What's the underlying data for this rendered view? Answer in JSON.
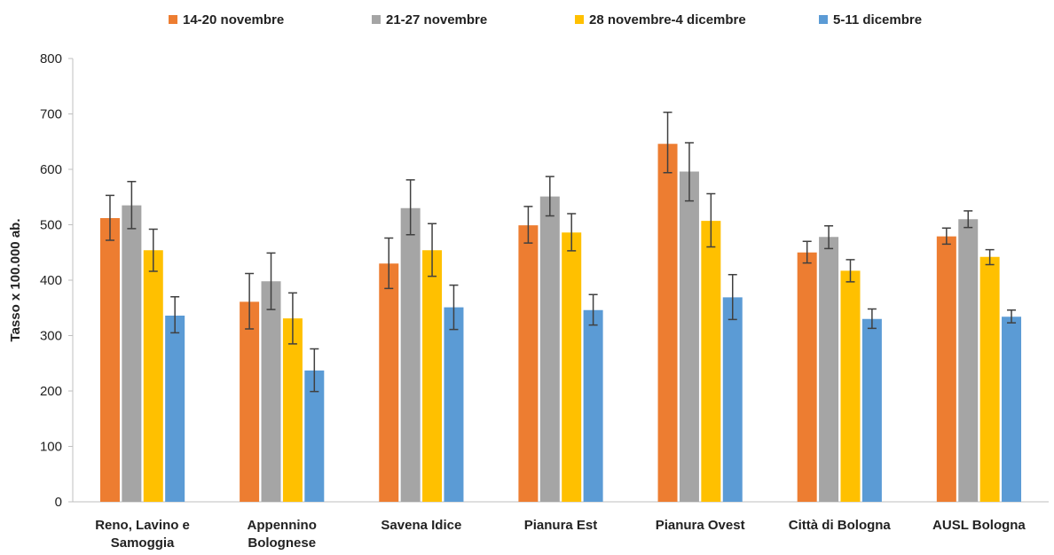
{
  "chart_data": {
    "type": "bar",
    "title": "",
    "xlabel": "",
    "ylabel": "Tasso x 100.000 ab.",
    "ylim": [
      0,
      800
    ],
    "yticks": [
      0,
      100,
      200,
      300,
      400,
      500,
      600,
      700,
      800
    ],
    "grid": false,
    "legend_position": "top",
    "error_bars": true,
    "categories": [
      [
        "Reno, Lavino e",
        "Samoggia"
      ],
      [
        "Appennino",
        "Bolognese"
      ],
      [
        "Savena Idice"
      ],
      [
        "Pianura Est"
      ],
      [
        "Pianura Ovest"
      ],
      [
        "Città di Bologna"
      ],
      [
        "AUSL Bologna"
      ]
    ],
    "series": [
      {
        "name": "14-20 novembre",
        "color": "#ED7D31",
        "values": [
          512,
          361,
          430,
          499,
          646,
          450,
          479
        ],
        "error_low": [
          472,
          312,
          385,
          467,
          594,
          431,
          465
        ],
        "error_high": [
          553,
          412,
          476,
          533,
          703,
          470,
          494
        ]
      },
      {
        "name": "21-27 novembre",
        "color": "#A5A5A5",
        "values": [
          535,
          398,
          530,
          551,
          596,
          478,
          510
        ],
        "error_low": [
          493,
          347,
          482,
          516,
          543,
          457,
          495
        ],
        "error_high": [
          578,
          449,
          581,
          587,
          648,
          498,
          525
        ]
      },
      {
        "name": "28 novembre-4 dicembre",
        "color": "#FFC000",
        "values": [
          454,
          331,
          454,
          486,
          507,
          417,
          442
        ],
        "error_low": [
          416,
          285,
          407,
          453,
          460,
          397,
          428
        ],
        "error_high": [
          492,
          377,
          502,
          520,
          556,
          437,
          455
        ]
      },
      {
        "name": "5-11 dicembre",
        "color": "#5B9BD5",
        "values": [
          336,
          237,
          351,
          346,
          369,
          330,
          334
        ],
        "error_low": [
          305,
          199,
          311,
          319,
          329,
          313,
          323
        ],
        "error_high": [
          370,
          276,
          391,
          374,
          410,
          348,
          346
        ]
      }
    ]
  }
}
